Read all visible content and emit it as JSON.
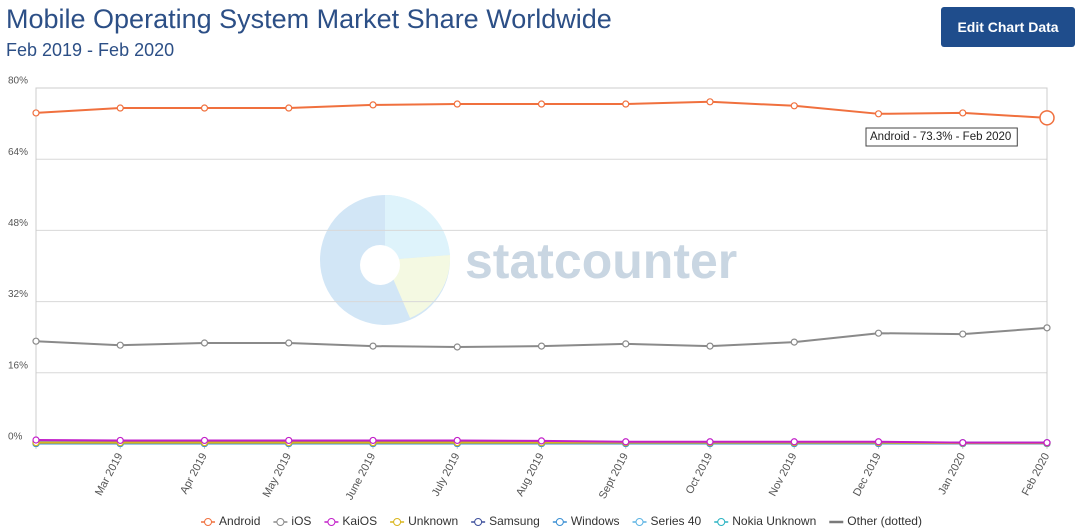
{
  "header": {
    "title": "Mobile Operating System Market Share Worldwide",
    "subtitle": "Feb 2019 - Feb 2020",
    "button": "Edit Chart Data"
  },
  "chart_data": {
    "type": "line",
    "categories": [
      null,
      "Mar 2019",
      "Apr 2019",
      "May 2019",
      "June 2019",
      "July 2019",
      "Aug 2019",
      "Sept 2019",
      "Oct 2019",
      "Nov 2019",
      "Dec 2019",
      "Jan 2020",
      "Feb 2020"
    ],
    "ylim": [
      0,
      80
    ],
    "yticks": [
      {
        "value": 0,
        "label": "0%"
      },
      {
        "value": 16,
        "label": "16%"
      },
      {
        "value": 32,
        "label": "32%"
      },
      {
        "value": 48,
        "label": "48%"
      },
      {
        "value": 64,
        "label": "64%"
      },
      {
        "value": 80,
        "label": "80%"
      }
    ],
    "grid": true,
    "legend": "bottom",
    "watermark": "statcounter",
    "tooltip": "Android - 73.3% - Feb 2020",
    "series": [
      {
        "name": "Android",
        "color": "#f0703e",
        "values": [
          74.4,
          75.5,
          75.5,
          75.5,
          76.2,
          76.4,
          76.4,
          76.4,
          76.9,
          76.0,
          74.2,
          74.4,
          73.3
        ]
      },
      {
        "name": "iOS",
        "color": "#8a8a8a",
        "values": [
          23.1,
          22.2,
          22.7,
          22.7,
          22.0,
          21.8,
          22.0,
          22.5,
          22.0,
          22.9,
          24.9,
          24.7,
          26.1
        ]
      },
      {
        "name": "KaiOS",
        "color": "#c21fc9",
        "values": [
          0.9,
          0.8,
          0.8,
          0.8,
          0.8,
          0.8,
          0.7,
          0.5,
          0.5,
          0.5,
          0.5,
          0.3,
          0.3
        ]
      },
      {
        "name": "Unknown",
        "color": "#d9b51c",
        "values": [
          0.3,
          0.3,
          0.3,
          0.3,
          0.3,
          0.3,
          0.3,
          0.3,
          0.3,
          0.3,
          0.3,
          0.2,
          0.2
        ]
      },
      {
        "name": "Samsung",
        "color": "#3d4f9c",
        "values": [
          0.4,
          0.4,
          0.4,
          0.4,
          0.4,
          0.4,
          0.4,
          0.4,
          0.4,
          0.4,
          0.4,
          0.3,
          0.3
        ]
      },
      {
        "name": "Windows",
        "color": "#3a8fd3",
        "values": [
          0.1,
          0.1,
          0.1,
          0.1,
          0.1,
          0.1,
          0.1,
          0.1,
          0.1,
          0.1,
          0.1,
          0.1,
          0.1
        ]
      },
      {
        "name": "Series 40",
        "color": "#5cb3e3",
        "values": [
          0.1,
          0.1,
          0.1,
          0.1,
          0.1,
          0.1,
          0.1,
          0.1,
          0.1,
          0.1,
          0.1,
          0.1,
          0.1
        ]
      },
      {
        "name": "Nokia Unknown",
        "color": "#2bb3c2",
        "values": [
          0.1,
          0.1,
          0.1,
          0.1,
          0.1,
          0.1,
          0.1,
          0.1,
          0.1,
          0.1,
          0.1,
          0.1,
          0.1
        ]
      },
      {
        "name": "Other (dotted)",
        "color": "#7a7a7a",
        "dotted": true,
        "values": [
          0.2,
          0.2,
          0.2,
          0.2,
          0.2,
          0.2,
          0.2,
          0.2,
          0.2,
          0.2,
          0.2,
          0.2,
          0.2
        ]
      }
    ]
  }
}
